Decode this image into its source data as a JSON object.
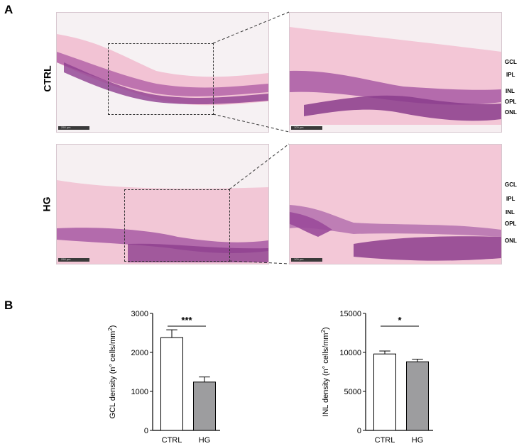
{
  "panels": {
    "a": "A",
    "b": "B"
  },
  "rows": {
    "ctrl": "CTRL",
    "hg": "HG"
  },
  "scalebars": {
    "low": "250 µm",
    "high": "100 µm"
  },
  "layers_ctrl": [
    "GCL",
    "IPL",
    "INL",
    "OPL",
    "ONL"
  ],
  "layers_hg": [
    "GCL",
    "IPL",
    "INL",
    "OPL",
    "ONL"
  ],
  "colors": {
    "tissue_light": "#f3c6d6",
    "tissue_nuclei": "#9a4a9a",
    "ctrl_bar": "#ffffff",
    "hg_bar": "#9d9d9f"
  },
  "chart_data": [
    {
      "type": "bar",
      "categories": [
        "CTRL",
        "HG"
      ],
      "values": [
        2380,
        1240
      ],
      "errors": [
        200,
        130
      ],
      "ylabel": "GCL density (n° cells/mm²)",
      "ylabel_main": "GCL density (n° cells/mm",
      "ylabel_sup": "2",
      "ylabel_end": ")",
      "ylim": [
        0,
        3000
      ],
      "yticks": [
        "0",
        "1000",
        "2000",
        "3000"
      ],
      "significance": "***"
    },
    {
      "type": "bar",
      "categories": [
        "CTRL",
        "HG"
      ],
      "values": [
        9800,
        8800
      ],
      "errors": [
        380,
        330
      ],
      "ylabel": "INL density (n° cells/mm²)",
      "ylabel_main": "INL density (n° cells/mm",
      "ylabel_sup": "2",
      "ylabel_end": ")",
      "ylim": [
        0,
        15000
      ],
      "yticks": [
        "0",
        "5000",
        "10000",
        "15000"
      ],
      "significance": "*"
    }
  ]
}
